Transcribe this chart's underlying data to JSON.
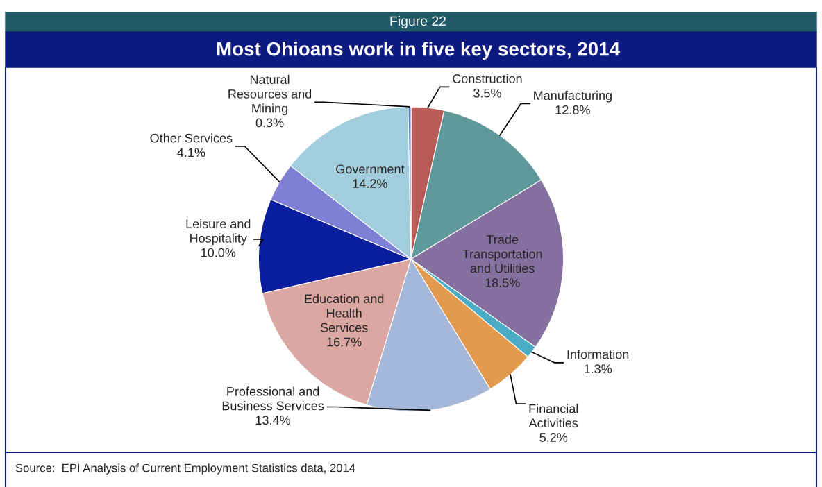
{
  "chart_data": {
    "type": "pie",
    "title": "Most Ohioans work in five key sectors, 2014",
    "subtitle": "Figure 22",
    "categories": [
      "Construction",
      "Manufacturing",
      "Trade\nTransportation\nand Utilities",
      "Information",
      "Financial\nActivities",
      "Professional and\nBusiness Services",
      "Education and\nHealth\nServices",
      "Leisure and\nHospitality",
      "Other Services",
      "Government",
      "Natural\nResources and\nMining"
    ],
    "values": [
      3.5,
      12.8,
      18.5,
      1.3,
      5.2,
      13.4,
      16.7,
      10.0,
      4.1,
      14.2,
      0.3
    ],
    "value_labels": [
      "3.5%",
      "12.8%",
      "18.5%",
      "1.3%",
      "5.2%",
      "13.4%",
      "16.7%",
      "10.0%",
      "4.1%",
      "14.2%",
      "0.3%"
    ],
    "colors": [
      "#b85a55",
      "#5f9999",
      "#8670a0",
      "#4bacc6",
      "#e39a4f",
      "#a5b8d9",
      "#dba7a3",
      "#0a1e9e",
      "#7f7fd6",
      "#a2cddc",
      "#4f81bd"
    ],
    "annotations": [
      "Source:  EPI Analysis of Current Employment Statistics data, 2014"
    ]
  }
}
